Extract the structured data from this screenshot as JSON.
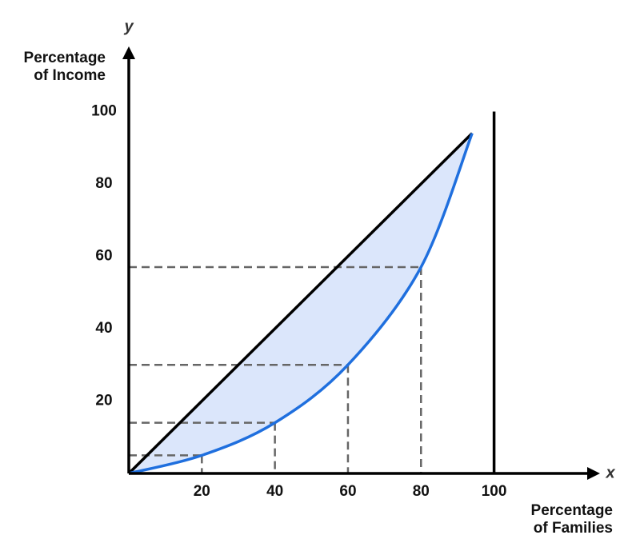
{
  "chart_data": {
    "type": "lorenz",
    "xlabel_axis": "x",
    "ylabel_axis": "y",
    "xlabel": [
      "Percentage",
      "of Families"
    ],
    "ylabel": [
      "Percentage",
      "of Income"
    ],
    "xlim": [
      0,
      129
    ],
    "ylim": [
      0,
      118
    ],
    "xticks": [
      20,
      40,
      60,
      80,
      100
    ],
    "yticks": [
      20,
      40,
      60,
      80,
      100
    ],
    "reference_x": 100,
    "series": [
      {
        "color": "#000000",
        "x": [
          0,
          94
        ],
        "values": [
          0,
          94
        ]
      },
      {
        "color": "#1f6fde",
        "fill": "#dbe6fb",
        "x": [
          0,
          20,
          40,
          60,
          80,
          94
        ],
        "values": [
          0,
          5,
          14,
          30,
          57,
          94
        ]
      }
    ]
  }
}
